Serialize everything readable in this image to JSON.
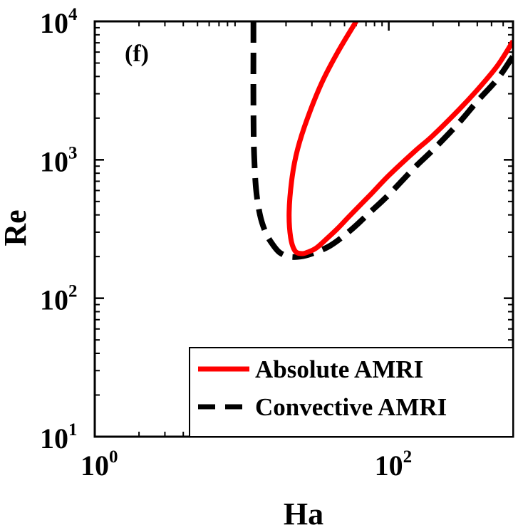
{
  "chart_data": {
    "type": "line",
    "xlabel": "Ha",
    "ylabel": "Re",
    "xscale": "log",
    "yscale": "log",
    "xlim": [
      1,
      700
    ],
    "ylim": [
      10,
      10000
    ],
    "x_ticks": [
      {
        "value": 1,
        "base": "10",
        "exp": "0"
      },
      {
        "value": 100,
        "base": "10",
        "exp": "2"
      }
    ],
    "y_ticks": [
      {
        "value": 10,
        "base": "10",
        "exp": "1"
      },
      {
        "value": 100,
        "base": "10",
        "exp": "2"
      },
      {
        "value": 1000,
        "base": "10",
        "exp": "3"
      },
      {
        "value": 10000,
        "base": "10",
        "exp": "4"
      }
    ],
    "panel_label": "(f)",
    "grid": false,
    "legend_position": "bottom-right",
    "series": [
      {
        "name": "Absolute AMRI",
        "color": "#ff0000",
        "style": "solid",
        "x": [
          60,
          45,
          35,
          28,
          24,
          22,
          21,
          21.5,
          23,
          25.5,
          28,
          32,
          38,
          45,
          55,
          75,
          100,
          150,
          200,
          300,
          400,
          550,
          700
        ],
        "y": [
          10000,
          6000,
          3600,
          2000,
          1200,
          750,
          420,
          275,
          220,
          210,
          215,
          230,
          270,
          320,
          400,
          560,
          770,
          1150,
          1500,
          2300,
          3200,
          4800,
          7200
        ]
      },
      {
        "name": "Convective AMRI",
        "color": "#000000",
        "style": "dashed",
        "x": [
          12,
          12,
          12,
          12.1,
          12.5,
          13.3,
          14.5,
          16,
          18,
          21,
          25,
          30,
          40,
          55,
          75,
          100,
          150,
          200,
          300,
          400,
          550,
          700
        ],
        "y": [
          10000,
          6000,
          2500,
          1200,
          620,
          400,
          300,
          250,
          215,
          200,
          200,
          210,
          240,
          310,
          420,
          560,
          880,
          1180,
          1850,
          2650,
          3850,
          5600
        ]
      }
    ]
  }
}
